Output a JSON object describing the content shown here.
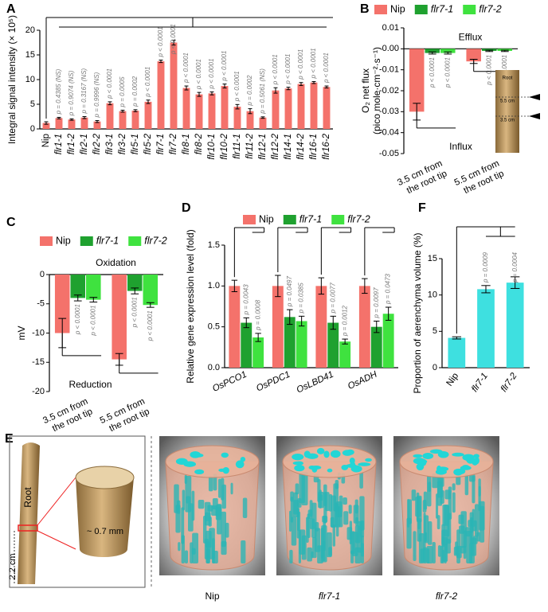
{
  "chart_data": [
    {
      "type": "bar",
      "label": "A",
      "ylabel": "Integral signal intensity (× 10⁵)",
      "categories": [
        "Nip",
        "flr1-1",
        "flr1-2",
        "flr2-1",
        "flr2-2",
        "flr3-1",
        "flr3-2",
        "flr5-1",
        "flr5-2",
        "flr7-1",
        "flr7-2",
        "flr8-1",
        "flr8-2",
        "flr10-1",
        "flr10-2",
        "flr11-1",
        "flr11-2",
        "flr12-1",
        "flr12-2",
        "flr14-1",
        "flr14-2",
        "flr16-1",
        "flr16-2"
      ],
      "category_colors": [
        "#000",
        "#000",
        "#000",
        "#000",
        "#000",
        "#000",
        "#000",
        "#000",
        "#000",
        "#e8251e",
        "#e8251e",
        "#000",
        "#000",
        "#000",
        "#000",
        "#000",
        "#000",
        "#000",
        "#000",
        "#000",
        "#000",
        "#000",
        "#000"
      ],
      "values": [
        1.2,
        2.2,
        1.9,
        2.3,
        1.5,
        5.2,
        3.6,
        3.7,
        5.5,
        13.7,
        17.5,
        8.3,
        7.0,
        7.2,
        8.7,
        4.5,
        3.6,
        2.3,
        7.8,
        8.2,
        9.1,
        9.4,
        8.5
      ],
      "errors": [
        0.25,
        0.15,
        0.15,
        0.2,
        0.2,
        0.3,
        0.2,
        0.2,
        0.35,
        0.25,
        0.5,
        0.4,
        0.4,
        0.3,
        0.4,
        0.45,
        0.5,
        0.15,
        0.55,
        0.25,
        0.3,
        0.2,
        0.2
      ],
      "color": "#f4726b",
      "p_values": [
        "p = 0.4385 (NS)",
        "p = 0.9074 (NS)",
        "p = 0.3167 (NS)",
        "p = 0.9996 (NS)",
        "p < 0.0001",
        "p = 0.0005",
        "p = 0.0002",
        "p < 0.0001",
        "p < 0.0001",
        "p < 0.0001",
        "p < 0.0001",
        "p < 0.0001",
        "p < 0.0001",
        "p < 0.0001",
        "p < 0.0001",
        "p = 0.0002",
        "p = 0.5061 (NS)",
        "p < 0.0001",
        "p < 0.0001",
        "p < 0.0001",
        "p < 0.0001",
        "p < 0.0001"
      ],
      "ylim": [
        0,
        20
      ],
      "yticks": [
        0,
        5,
        10,
        15,
        20
      ]
    },
    {
      "type": "bar",
      "label": "B",
      "ylabel": [
        "O₂ net flux",
        "(pico mole·cm⁻²·s⁻¹)"
      ],
      "categories": [
        [
          "3.5 cm from",
          "the root tip"
        ],
        [
          "5.5 cm from",
          "the root tip"
        ]
      ],
      "series": [
        {
          "name": "Nip",
          "color": "#f4726b",
          "values": [
            -0.03,
            -0.006
          ],
          "errors": [
            0.004,
            0.001
          ]
        },
        {
          "name": "flr7-1",
          "color": "#1fa12f",
          "values": [
            -0.002,
            -0.001
          ],
          "errors": [
            0.0005,
            0.0003
          ]
        },
        {
          "name": "flr7-2",
          "color": "#3fe23f",
          "values": [
            -0.002,
            -0.001
          ],
          "errors": [
            0.0005,
            0.0003
          ]
        }
      ],
      "p_values": [
        [
          "p < 0.0001",
          "p < 0.0001"
        ],
        [
          "p < 0.0001",
          "p < 0.0001"
        ]
      ],
      "annotations": [
        "Efflux",
        "Influx"
      ],
      "inset_labels": [
        "Root",
        "5.5 cm",
        "3.5 cm"
      ],
      "ylim": [
        -0.05,
        0.01
      ],
      "yticks": [
        0.01,
        {
          "value": 0,
          "label": "0.00"
        },
        -0.01,
        -0.02,
        -0.03,
        -0.04,
        -0.05
      ]
    },
    {
      "type": "bar",
      "label": "C",
      "ylabel": "mV",
      "categories": [
        [
          "3.5 cm from",
          "the root tip"
        ],
        [
          "5.5 cm from",
          "the root tip"
        ]
      ],
      "series": [
        {
          "name": "Nip",
          "color": "#f4726b",
          "values": [
            -10,
            -14.5
          ],
          "errors": [
            2.5,
            1.0
          ]
        },
        {
          "name": "flr7-1",
          "color": "#1fa12f",
          "values": [
            -4,
            -2.8
          ],
          "errors": [
            0.5,
            0.5
          ]
        },
        {
          "name": "flr7-2",
          "color": "#3fe23f",
          "values": [
            -4.3,
            -5.2
          ],
          "errors": [
            0.4,
            0.4
          ]
        }
      ],
      "p_values": [
        [
          "p < 0.0001",
          "p < 0.0001"
        ],
        [
          "p < 0.0001",
          "p < 0.0001"
        ]
      ],
      "annotations": [
        "Oxidation",
        "Reduction"
      ],
      "ylim": [
        -20,
        0
      ],
      "yticks": [
        0,
        -5,
        -10,
        -15,
        -20
      ]
    },
    {
      "type": "bar",
      "label": "D",
      "ylabel": "Relative gene expression level (fold)",
      "categories": [
        "OsPCO1",
        "OsPDC1",
        "OsLBD41",
        "OsADH"
      ],
      "series": [
        {
          "name": "Nip",
          "color": "#f4726b",
          "values": [
            1.0,
            1.0,
            1.0,
            1.0
          ],
          "errors": [
            0.07,
            0.13,
            0.1,
            0.09
          ]
        },
        {
          "name": "flr7-1",
          "color": "#1fa12f",
          "values": [
            0.55,
            0.62,
            0.55,
            0.5
          ],
          "errors": [
            0.06,
            0.09,
            0.08,
            0.07
          ]
        },
        {
          "name": "flr7-2",
          "color": "#3fe23f",
          "values": [
            0.37,
            0.57,
            0.32,
            0.66
          ],
          "errors": [
            0.05,
            0.06,
            0.03,
            0.08
          ]
        }
      ],
      "p_values": [
        [
          "p = 0.0043",
          "p = 0.0008"
        ],
        [
          "p = 0.0497",
          "p = 0.0385"
        ],
        [
          "p = 0.0077",
          "p = 0.0012"
        ],
        [
          "p = 0.0097",
          "p = 0.0473"
        ]
      ],
      "ylim": [
        0,
        1.5
      ],
      "yticks": [
        {
          "value": 0,
          "label": "0.0"
        },
        0.5,
        {
          "value": 1,
          "label": "1.0"
        },
        1.5
      ]
    },
    {
      "type": "bar",
      "label": "F",
      "ylabel": "Proportion of aerenchyma volume (%)",
      "categories": [
        "Nip",
        "flr7-1",
        "flr7-2"
      ],
      "values": [
        4.1,
        10.8,
        11.7
      ],
      "errors": [
        0.15,
        0.5,
        0.8
      ],
      "color": "#3ee0e0",
      "p_values": [
        "p = 0.0009",
        "p = 0.0004"
      ],
      "ylim": [
        0,
        15
      ],
      "yticks": [
        0,
        5,
        10,
        15
      ]
    }
  ],
  "illustration": {
    "label": "E",
    "root_label": "Root",
    "length_label": "2.2 cm",
    "diameter_label": "~ 0.7 mm",
    "samples": [
      "Nip",
      "flr7-1",
      "flr7-2"
    ]
  }
}
